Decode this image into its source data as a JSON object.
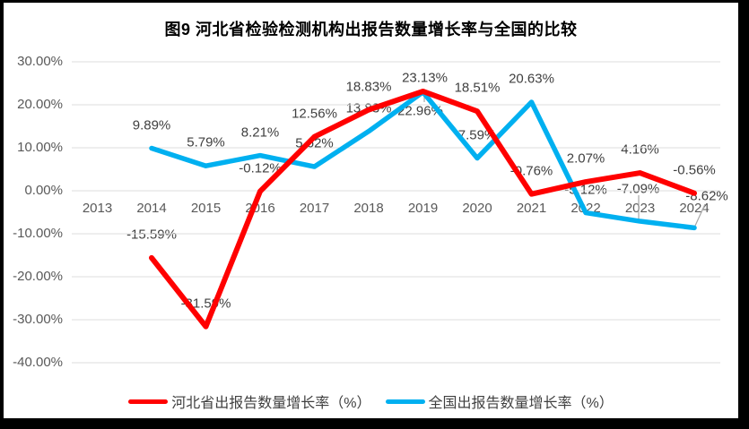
{
  "title": "图9 河北省检验检测机构出报告数量增长率与全国的比较",
  "colors": {
    "hebei_line": "#FF0000",
    "national_line": "#00B0F0",
    "gridline": "#DCDCDC",
    "axis_text": "#595959",
    "data_label_text": "#404040",
    "leader_line": "#A6A6A6",
    "frame_border": "#000000"
  },
  "chart_data": {
    "type": "line",
    "title": "图9 河北省检验检测机构出报告数量增长率与全国的比较",
    "categories": [
      "2013",
      "2014",
      "2015",
      "2016",
      "2017",
      "2018",
      "2019",
      "2020",
      "2021",
      "2022",
      "2023",
      "2024"
    ],
    "series": [
      {
        "name": "河北省出报告数量增长率（%）",
        "color": "#FF0000",
        "values": [
          null,
          -15.59,
          -31.59,
          -0.12,
          12.56,
          18.83,
          23.13,
          18.51,
          -0.76,
          2.07,
          4.16,
          -0.56
        ]
      },
      {
        "name": "全国出报告数量增长率（%）",
        "color": "#00B0F0",
        "values": [
          null,
          9.89,
          5.79,
          8.21,
          5.62,
          13.83,
          22.96,
          7.59,
          20.63,
          -5.12,
          -7.09,
          -8.62
        ]
      }
    ],
    "y_ticks": [
      "30.00%",
      "20.00%",
      "10.00%",
      "0.00%",
      "-10.00%",
      "-20.00%",
      "-30.00%",
      "-40.00%"
    ],
    "ylim": [
      -40,
      30
    ],
    "grid": true,
    "legend_position": "bottom",
    "data_labels": true,
    "label_format": "0.00%"
  }
}
